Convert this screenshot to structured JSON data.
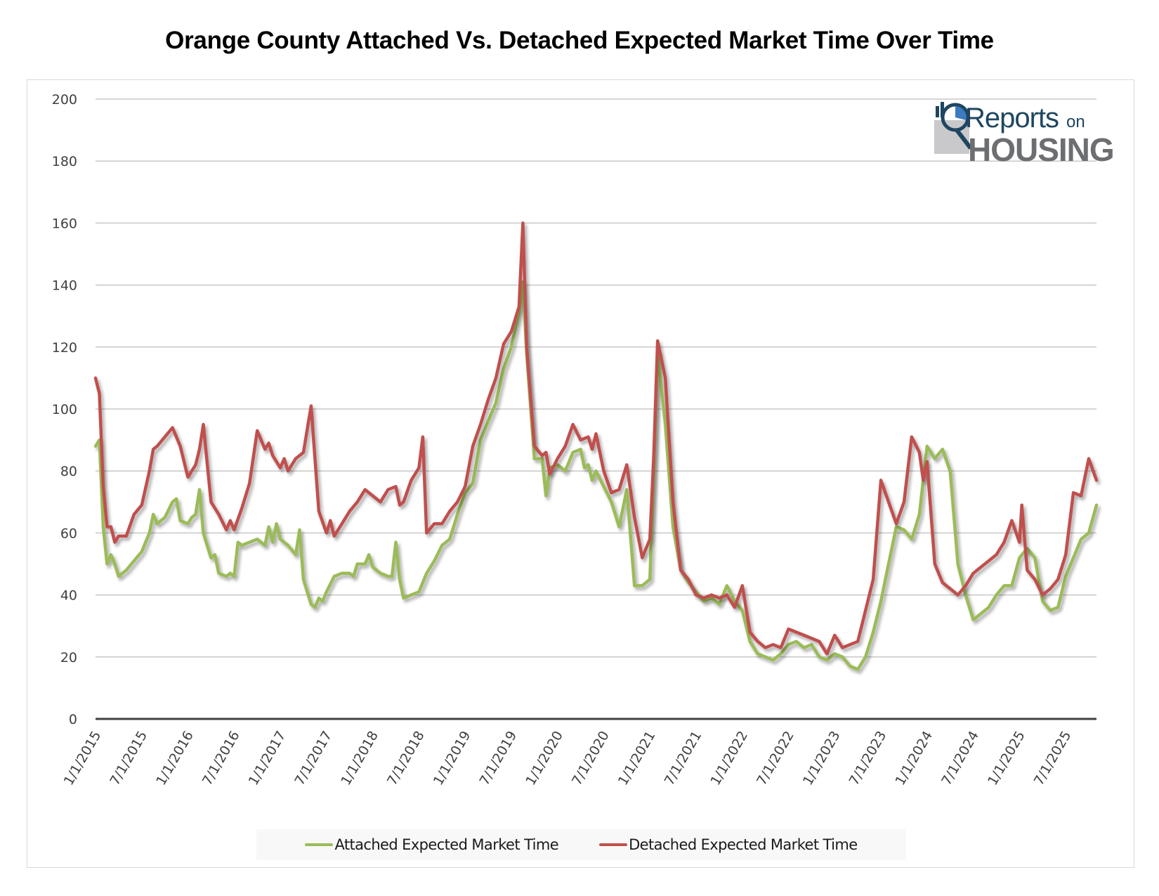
{
  "chart_data": {
    "type": "line",
    "title": "Orange County Attached Vs. Detached Expected Market Time Over Time",
    "xlabel": "",
    "ylabel": "",
    "ylim": [
      0,
      200
    ],
    "yticks": [
      "0",
      "20",
      "40",
      "60",
      "80",
      "100",
      "120",
      "140",
      "160",
      "180",
      "200"
    ],
    "x_unit": "months since 1/1/2015",
    "xlim": [
      0,
      130
    ],
    "xticks": [
      {
        "m": 0,
        "label": "1/1/2015"
      },
      {
        "m": 6,
        "label": "7/1/2015"
      },
      {
        "m": 12,
        "label": "1/1/2016"
      },
      {
        "m": 18,
        "label": "7/1/2016"
      },
      {
        "m": 24,
        "label": "1/1/2017"
      },
      {
        "m": 30,
        "label": "7/1/2017"
      },
      {
        "m": 36,
        "label": "1/1/2018"
      },
      {
        "m": 42,
        "label": "7/1/2018"
      },
      {
        "m": 48,
        "label": "1/1/2019"
      },
      {
        "m": 54,
        "label": "7/1/2019"
      },
      {
        "m": 60,
        "label": "1/1/2020"
      },
      {
        "m": 66,
        "label": "7/1/2020"
      },
      {
        "m": 72,
        "label": "1/1/2021"
      },
      {
        "m": 78,
        "label": "7/1/2021"
      },
      {
        "m": 84,
        "label": "1/1/2022"
      },
      {
        "m": 90,
        "label": "7/1/2022"
      },
      {
        "m": 96,
        "label": "1/1/2023"
      },
      {
        "m": 102,
        "label": "7/1/2023"
      },
      {
        "m": 108,
        "label": "1/1/2024"
      },
      {
        "m": 114,
        "label": "7/1/2024"
      },
      {
        "m": 120,
        "label": "1/1/2025"
      },
      {
        "m": 126,
        "label": "7/1/2025"
      }
    ],
    "grid": true,
    "legend_position": "bottom",
    "series": [
      {
        "name": "Attached Expected Market Time",
        "color": "#9bbb59",
        "points": [
          [
            0,
            88
          ],
          [
            0.5,
            90
          ],
          [
            1,
            62
          ],
          [
            1.5,
            50
          ],
          [
            2,
            53
          ],
          [
            2.5,
            50
          ],
          [
            3,
            46
          ],
          [
            4,
            48
          ],
          [
            5,
            51
          ],
          [
            6,
            54
          ],
          [
            7,
            60
          ],
          [
            7.5,
            66
          ],
          [
            8,
            63
          ],
          [
            9,
            65
          ],
          [
            10,
            70
          ],
          [
            10.5,
            71
          ],
          [
            11,
            64
          ],
          [
            12,
            63
          ],
          [
            12.5,
            65
          ],
          [
            13,
            66
          ],
          [
            13.5,
            74
          ],
          [
            14,
            60
          ],
          [
            15,
            52
          ],
          [
            15.5,
            53
          ],
          [
            16,
            47
          ],
          [
            17,
            46
          ],
          [
            17.5,
            47
          ],
          [
            18,
            46
          ],
          [
            18.5,
            57
          ],
          [
            19,
            56
          ],
          [
            20,
            57
          ],
          [
            21,
            58
          ],
          [
            22,
            56
          ],
          [
            22.5,
            62
          ],
          [
            23,
            57
          ],
          [
            23.5,
            63
          ],
          [
            24,
            58
          ],
          [
            25,
            56
          ],
          [
            26,
            53
          ],
          [
            26.5,
            61
          ],
          [
            27,
            45
          ],
          [
            28,
            37
          ],
          [
            28.5,
            36
          ],
          [
            29,
            39
          ],
          [
            29.5,
            38
          ],
          [
            30,
            41
          ],
          [
            31,
            46
          ],
          [
            32,
            47
          ],
          [
            33,
            47
          ],
          [
            33.5,
            46
          ],
          [
            34,
            50
          ],
          [
            35,
            50
          ],
          [
            35.5,
            53
          ],
          [
            36,
            49
          ],
          [
            37,
            47
          ],
          [
            38,
            46
          ],
          [
            38.5,
            46
          ],
          [
            39,
            57
          ],
          [
            39.5,
            45
          ],
          [
            40,
            39
          ],
          [
            41,
            40
          ],
          [
            42,
            41
          ],
          [
            43,
            47
          ],
          [
            44,
            51
          ],
          [
            45,
            56
          ],
          [
            46,
            58
          ],
          [
            47,
            66
          ],
          [
            48,
            73
          ],
          [
            49,
            76
          ],
          [
            50,
            90
          ],
          [
            51,
            96
          ],
          [
            52,
            102
          ],
          [
            53,
            113
          ],
          [
            54,
            120
          ],
          [
            55,
            131
          ],
          [
            55.5,
            141
          ],
          [
            56,
            118
          ],
          [
            57,
            84
          ],
          [
            58,
            84
          ],
          [
            58.5,
            72
          ],
          [
            59,
            81
          ],
          [
            60,
            82
          ],
          [
            61,
            80
          ],
          [
            62,
            86
          ],
          [
            63,
            87
          ],
          [
            63.5,
            81
          ],
          [
            64,
            82
          ],
          [
            64.5,
            77
          ],
          [
            65,
            80
          ],
          [
            66,
            75
          ],
          [
            67,
            70
          ],
          [
            68,
            62
          ],
          [
            69,
            74
          ],
          [
            70,
            43
          ],
          [
            71,
            43
          ],
          [
            72,
            45
          ],
          [
            72.5,
            80
          ],
          [
            73,
            118
          ],
          [
            74,
            95
          ],
          [
            75,
            62
          ],
          [
            76,
            48
          ],
          [
            77,
            44
          ],
          [
            78,
            41
          ],
          [
            79,
            38
          ],
          [
            80,
            39
          ],
          [
            81,
            37
          ],
          [
            82,
            43
          ],
          [
            83,
            38
          ],
          [
            84,
            35
          ],
          [
            85,
            25
          ],
          [
            86,
            21
          ],
          [
            87,
            20
          ],
          [
            88,
            19
          ],
          [
            89,
            21
          ],
          [
            90,
            24
          ],
          [
            91,
            25
          ],
          [
            92,
            23
          ],
          [
            93,
            24
          ],
          [
            94,
            20
          ],
          [
            95,
            19
          ],
          [
            96,
            21
          ],
          [
            97,
            20
          ],
          [
            98,
            17
          ],
          [
            99,
            16
          ],
          [
            100,
            20
          ],
          [
            101,
            28
          ],
          [
            102,
            38
          ],
          [
            103,
            50
          ],
          [
            104,
            62
          ],
          [
            105,
            61
          ],
          [
            106,
            58
          ],
          [
            107,
            66
          ],
          [
            108,
            88
          ],
          [
            109,
            84
          ],
          [
            110,
            87
          ],
          [
            111,
            80
          ],
          [
            112,
            50
          ],
          [
            113,
            40
          ],
          [
            114,
            32
          ],
          [
            115,
            34
          ],
          [
            116,
            36
          ],
          [
            117,
            40
          ],
          [
            118,
            43
          ],
          [
            119,
            43
          ],
          [
            120,
            52
          ],
          [
            121,
            55
          ],
          [
            122,
            52
          ],
          [
            123,
            38
          ],
          [
            124,
            35
          ],
          [
            125,
            36
          ],
          [
            126,
            46
          ],
          [
            127,
            52
          ],
          [
            128,
            58
          ],
          [
            129,
            60
          ],
          [
            130,
            69
          ]
        ]
      },
      {
        "name": "Detached Expected Market Time",
        "color": "#c0504d",
        "points": [
          [
            0,
            110
          ],
          [
            0.5,
            105
          ],
          [
            1,
            75
          ],
          [
            1.5,
            62
          ],
          [
            2,
            62
          ],
          [
            2.5,
            57
          ],
          [
            3,
            59
          ],
          [
            4,
            59
          ],
          [
            5,
            66
          ],
          [
            6,
            69
          ],
          [
            7,
            80
          ],
          [
            7.5,
            87
          ],
          [
            8,
            88
          ],
          [
            9,
            91
          ],
          [
            10,
            94
          ],
          [
            11,
            88
          ],
          [
            12,
            78
          ],
          [
            13,
            82
          ],
          [
            13.5,
            87
          ],
          [
            14,
            95
          ],
          [
            15,
            70
          ],
          [
            16,
            66
          ],
          [
            17,
            61
          ],
          [
            17.5,
            64
          ],
          [
            18,
            61
          ],
          [
            19,
            68
          ],
          [
            20,
            76
          ],
          [
            21,
            93
          ],
          [
            22,
            87
          ],
          [
            22.5,
            89
          ],
          [
            23,
            85
          ],
          [
            24,
            81
          ],
          [
            24.5,
            84
          ],
          [
            25,
            80
          ],
          [
            26,
            84
          ],
          [
            27,
            86
          ],
          [
            28,
            101
          ],
          [
            29,
            67
          ],
          [
            30,
            60
          ],
          [
            30.5,
            64
          ],
          [
            31,
            59
          ],
          [
            32,
            63
          ],
          [
            33,
            67
          ],
          [
            34,
            70
          ],
          [
            35,
            74
          ],
          [
            36,
            72
          ],
          [
            37,
            70
          ],
          [
            38,
            74
          ],
          [
            39,
            75
          ],
          [
            39.5,
            69
          ],
          [
            40,
            70
          ],
          [
            41,
            77
          ],
          [
            42,
            81
          ],
          [
            42.5,
            91
          ],
          [
            43,
            60
          ],
          [
            44,
            63
          ],
          [
            45,
            63
          ],
          [
            46,
            67
          ],
          [
            47,
            70
          ],
          [
            48,
            75
          ],
          [
            49,
            88
          ],
          [
            50,
            95
          ],
          [
            51,
            103
          ],
          [
            52,
            110
          ],
          [
            53,
            121
          ],
          [
            54,
            125
          ],
          [
            55,
            133
          ],
          [
            55.5,
            160
          ],
          [
            56,
            120
          ],
          [
            57,
            88
          ],
          [
            58,
            85
          ],
          [
            58.5,
            86
          ],
          [
            59,
            79
          ],
          [
            60,
            84
          ],
          [
            61,
            88
          ],
          [
            62,
            95
          ],
          [
            63,
            90
          ],
          [
            64,
            91
          ],
          [
            64.5,
            87
          ],
          [
            65,
            92
          ],
          [
            66,
            80
          ],
          [
            67,
            73
          ],
          [
            68,
            74
          ],
          [
            69,
            82
          ],
          [
            70,
            65
          ],
          [
            71,
            52
          ],
          [
            72,
            58
          ],
          [
            72.5,
            85
          ],
          [
            73,
            122
          ],
          [
            74,
            110
          ],
          [
            75,
            70
          ],
          [
            76,
            48
          ],
          [
            77,
            45
          ],
          [
            78,
            40
          ],
          [
            79,
            39
          ],
          [
            80,
            40
          ],
          [
            81,
            39
          ],
          [
            82,
            40
          ],
          [
            83,
            36
          ],
          [
            84,
            43
          ],
          [
            85,
            28
          ],
          [
            86,
            25
          ],
          [
            87,
            23
          ],
          [
            88,
            24
          ],
          [
            89,
            23
          ],
          [
            90,
            29
          ],
          [
            91,
            28
          ],
          [
            92,
            27
          ],
          [
            93,
            26
          ],
          [
            94,
            25
          ],
          [
            95,
            21
          ],
          [
            96,
            27
          ],
          [
            97,
            23
          ],
          [
            98,
            24
          ],
          [
            99,
            25
          ],
          [
            100,
            35
          ],
          [
            101,
            45
          ],
          [
            102,
            77
          ],
          [
            103,
            70
          ],
          [
            104,
            63
          ],
          [
            105,
            70
          ],
          [
            106,
            91
          ],
          [
            107,
            86
          ],
          [
            107.5,
            77
          ],
          [
            108,
            83
          ],
          [
            109,
            50
          ],
          [
            110,
            44
          ],
          [
            111,
            42
          ],
          [
            112,
            40
          ],
          [
            113,
            43
          ],
          [
            114,
            47
          ],
          [
            115,
            49
          ],
          [
            116,
            51
          ],
          [
            117,
            53
          ],
          [
            118,
            57
          ],
          [
            119,
            64
          ],
          [
            120,
            57
          ],
          [
            120.3,
            69
          ],
          [
            121,
            48
          ],
          [
            122,
            45
          ],
          [
            123,
            40
          ],
          [
            124,
            42
          ],
          [
            125,
            45
          ],
          [
            126,
            53
          ],
          [
            127,
            73
          ],
          [
            128,
            72
          ],
          [
            129,
            84
          ],
          [
            130,
            77
          ]
        ]
      }
    ]
  },
  "legend": {
    "attached_label": "Attached Expected Market Time",
    "detached_label": "Detached Expected Market Time"
  },
  "logo": {
    "reports": "Reports",
    "on": "on",
    "housing": "HOUSING"
  }
}
